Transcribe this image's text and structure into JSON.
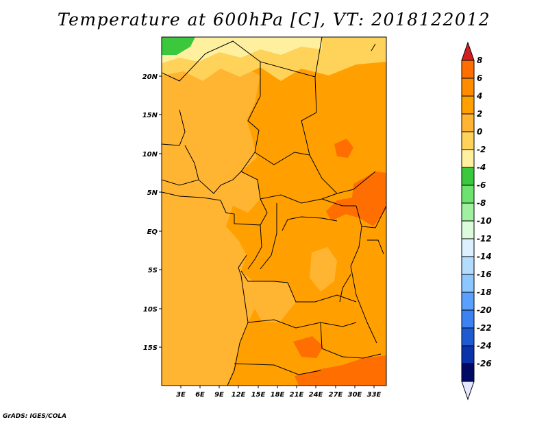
{
  "title": "Temperature at 600hPa [C], VT: 2018122012",
  "credit": "GrADS: IGES/COLA",
  "map": {
    "region": "Central Africa",
    "variable": "Temperature",
    "level": "600hPa",
    "units": "C",
    "valid_time": "2018122012",
    "lon_labels": [
      "3E",
      "6E",
      "9E",
      "12E",
      "15E",
      "18E",
      "21E",
      "24E",
      "27E",
      "30E",
      "33E"
    ],
    "lat_labels": [
      "20N",
      "15N",
      "10N",
      "5N",
      "EQ",
      "5S",
      "10S",
      "15S"
    ],
    "field_colors": {
      "2_to_4": "#ffa000",
      "0_to_2": "#ffb432",
      "minus2_to_0": "#ffd25a",
      "minus4_to_minus2": "#fff0a0",
      "4_to_6": "#ff6e00",
      "minus6_to_minus4": "#3cc83c"
    }
  },
  "colorbar": {
    "labels": [
      "8",
      "6",
      "4",
      "2",
      "0",
      "-2",
      "-4",
      "-6",
      "-8",
      "-10",
      "-12",
      "-14",
      "-16",
      "-18",
      "-20",
      "-22",
      "-24",
      "-26"
    ],
    "colors": [
      "#ff2800",
      "#ff6e00",
      "#ff8c00",
      "#ffa000",
      "#ffb432",
      "#ffd25a",
      "#fff0a0",
      "#3cc83c",
      "#6ee26e",
      "#a0f0a0",
      "#dcfadc",
      "#dcf0ff",
      "#b4dcff",
      "#8cc8ff",
      "#5aa0ff",
      "#3c82f0",
      "#1e5ad2",
      "#0a32aa",
      "#000a64"
    ],
    "top_arrow_color": "#d21e1e",
    "bottom_arrow_color": "#e6e6ff"
  }
}
